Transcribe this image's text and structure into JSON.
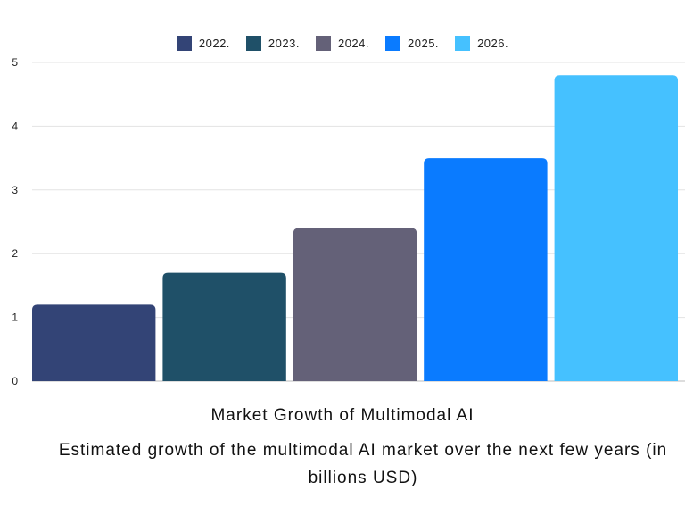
{
  "chart_data": {
    "type": "bar",
    "title": "Market Growth of Multimodal AI",
    "subtitle": "Estimated growth of the multimodal AI market over the next few years (in billions USD)",
    "categories": [
      "2022.",
      "2023.",
      "2024.",
      "2025.",
      "2026."
    ],
    "values": [
      1.2,
      1.7,
      2.4,
      3.5,
      4.8
    ],
    "colors": [
      "#334476",
      "#1f5068",
      "#646178",
      "#0a7bff",
      "#45c1ff"
    ],
    "ylim": [
      0,
      5
    ],
    "yticks": [
      "0",
      "1",
      "2",
      "3",
      "4",
      "5"
    ],
    "grid": true,
    "legend_position": "top-center"
  }
}
